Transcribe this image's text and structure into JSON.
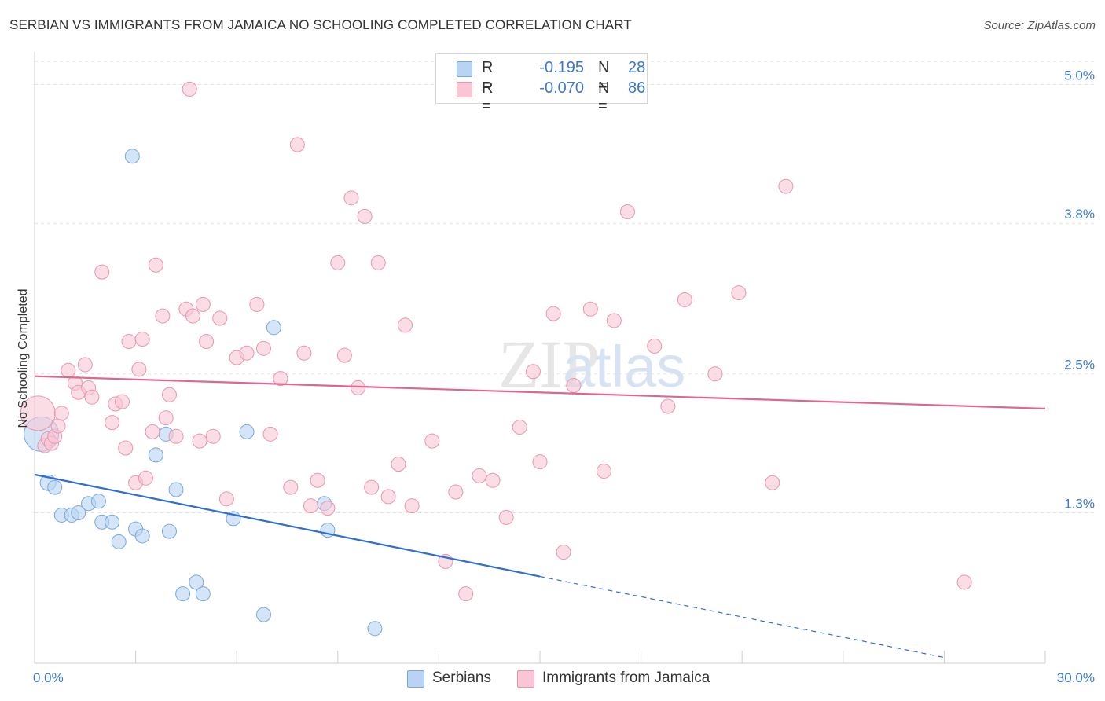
{
  "title": "SERBIAN VS IMMIGRANTS FROM JAMAICA NO SCHOOLING COMPLETED CORRELATION CHART",
  "source": "Source: ZipAtlas.com",
  "watermark": {
    "zip": "ZIP",
    "atlas": "atlas"
  },
  "legend": {
    "rows": [
      {
        "r_label": "R =",
        "r_value": "-0.195",
        "n_label": "N =",
        "n_value": "28"
      },
      {
        "r_label": "R =",
        "r_value": "-0.070",
        "n_label": "N =",
        "n_value": "86"
      }
    ]
  },
  "bottom_legend": {
    "series1": "Serbians",
    "series2": "Immigrants from Jamaica"
  },
  "chart_data": {
    "type": "scatter",
    "title": "SERBIAN VS IMMIGRANTS FROM JAMAICA NO SCHOOLING COMPLETED CORRELATION CHART",
    "xlabel": "",
    "ylabel": "No Schooling Completed",
    "xlim": [
      0,
      30
    ],
    "ylim": [
      0,
      5.2
    ],
    "x_tick_labels": [
      "0.0%",
      "30.0%"
    ],
    "y_ticks": [
      {
        "value": 1.3,
        "label": "1.3%"
      },
      {
        "value": 2.5,
        "label": "2.5%"
      },
      {
        "value": 3.8,
        "label": "3.8%"
      },
      {
        "value": 5.0,
        "label": "5.0%"
      }
    ],
    "grid": true,
    "legend_position": "top-center",
    "colors": {
      "serbians_fill": "#b8d3f4",
      "serbians_stroke": "#7aa7dd",
      "serbians_line": "#2e6fcf",
      "jamaica_fill": "#f8c6d5",
      "jamaica_stroke": "#e896b0",
      "jamaica_line": "#e0668c",
      "value_text": "#3b78c9"
    },
    "series": [
      {
        "name": "Serbians",
        "points": [
          [
            0.2,
            1.98,
            22
          ],
          [
            0.4,
            1.56,
            10
          ],
          [
            0.6,
            1.52,
            9
          ],
          [
            0.8,
            1.28,
            9
          ],
          [
            1.1,
            1.28,
            9
          ],
          [
            1.3,
            1.3,
            9
          ],
          [
            1.6,
            1.38,
            9
          ],
          [
            1.9,
            1.4,
            9
          ],
          [
            2.0,
            1.22,
            9
          ],
          [
            2.3,
            1.22,
            9
          ],
          [
            2.5,
            1.05,
            9
          ],
          [
            2.9,
            4.38,
            9
          ],
          [
            3.0,
            1.16,
            9
          ],
          [
            3.2,
            1.1,
            9
          ],
          [
            3.6,
            1.8,
            9
          ],
          [
            3.9,
            1.98,
            9
          ],
          [
            4.0,
            1.14,
            9
          ],
          [
            4.2,
            1.5,
            9
          ],
          [
            4.4,
            0.6,
            9
          ],
          [
            4.8,
            0.7,
            9
          ],
          [
            5.0,
            0.6,
            9
          ],
          [
            5.9,
            1.25,
            9
          ],
          [
            6.3,
            2.0,
            9
          ],
          [
            6.8,
            0.42,
            9
          ],
          [
            7.1,
            2.9,
            9
          ],
          [
            8.6,
            1.38,
            9
          ],
          [
            8.7,
            1.15,
            9
          ],
          [
            10.1,
            0.3,
            9
          ]
        ],
        "trend": {
          "x": [
            0,
            15
          ],
          "y": [
            1.63,
            0.75
          ]
        },
        "trend_extension": {
          "x": [
            15,
            27
          ],
          "y": [
            0.75,
            0.05
          ]
        }
      },
      {
        "name": "Immigrants from Jamaica",
        "points": [
          [
            0.1,
            2.16,
            22
          ],
          [
            0.3,
            1.88,
            9
          ],
          [
            0.4,
            1.94,
            9
          ],
          [
            0.5,
            1.9,
            9
          ],
          [
            0.6,
            1.96,
            9
          ],
          [
            0.7,
            2.05,
            9
          ],
          [
            0.8,
            2.16,
            9
          ],
          [
            1.0,
            2.53,
            9
          ],
          [
            1.2,
            2.42,
            9
          ],
          [
            1.3,
            2.34,
            9
          ],
          [
            1.5,
            2.58,
            9
          ],
          [
            1.6,
            2.38,
            9
          ],
          [
            1.7,
            2.3,
            9
          ],
          [
            2.0,
            3.38,
            9
          ],
          [
            2.3,
            2.08,
            9
          ],
          [
            2.4,
            2.24,
            9
          ],
          [
            2.6,
            2.26,
            9
          ],
          [
            2.7,
            1.86,
            9
          ],
          [
            2.8,
            2.78,
            9
          ],
          [
            3.0,
            1.56,
            9
          ],
          [
            3.1,
            2.54,
            9
          ],
          [
            3.2,
            2.8,
            9
          ],
          [
            3.3,
            1.6,
            9
          ],
          [
            3.5,
            2.0,
            9
          ],
          [
            3.6,
            3.44,
            9
          ],
          [
            3.8,
            3.0,
            9
          ],
          [
            3.9,
            2.12,
            9
          ],
          [
            4.0,
            2.32,
            9
          ],
          [
            4.2,
            1.96,
            9
          ],
          [
            4.5,
            3.06,
            9
          ],
          [
            4.6,
            4.96,
            9
          ],
          [
            4.7,
            3.0,
            9
          ],
          [
            4.9,
            1.92,
            9
          ],
          [
            5.0,
            3.1,
            9
          ],
          [
            5.1,
            2.78,
            9
          ],
          [
            5.3,
            1.96,
            9
          ],
          [
            5.5,
            2.98,
            9
          ],
          [
            5.7,
            1.42,
            9
          ],
          [
            6.0,
            2.64,
            9
          ],
          [
            6.3,
            2.68,
            9
          ],
          [
            6.6,
            3.1,
            9
          ],
          [
            6.8,
            2.72,
            9
          ],
          [
            7.0,
            1.98,
            9
          ],
          [
            7.3,
            2.46,
            9
          ],
          [
            7.6,
            1.52,
            9
          ],
          [
            7.8,
            4.48,
            9
          ],
          [
            8.0,
            2.68,
            9
          ],
          [
            8.2,
            1.36,
            9
          ],
          [
            8.4,
            1.58,
            9
          ],
          [
            8.7,
            1.34,
            9
          ],
          [
            9.0,
            3.46,
            9
          ],
          [
            9.2,
            2.66,
            9
          ],
          [
            9.4,
            4.02,
            9
          ],
          [
            9.6,
            2.38,
            9
          ],
          [
            9.8,
            3.86,
            9
          ],
          [
            10.0,
            1.52,
            9
          ],
          [
            10.2,
            3.46,
            9
          ],
          [
            10.5,
            1.44,
            9
          ],
          [
            10.8,
            1.72,
            9
          ],
          [
            11.0,
            2.92,
            9
          ],
          [
            11.2,
            1.36,
            9
          ],
          [
            11.8,
            1.92,
            9
          ],
          [
            12.2,
            0.88,
            9
          ],
          [
            12.5,
            1.48,
            9
          ],
          [
            12.8,
            0.6,
            9
          ],
          [
            13.2,
            1.62,
            9
          ],
          [
            13.6,
            1.58,
            9
          ],
          [
            14.0,
            1.26,
            9
          ],
          [
            14.4,
            2.04,
            9
          ],
          [
            14.8,
            2.52,
            9
          ],
          [
            15.0,
            1.74,
            9
          ],
          [
            15.4,
            3.02,
            9
          ],
          [
            15.7,
            0.96,
            9
          ],
          [
            16.0,
            2.4,
            9
          ],
          [
            16.5,
            3.06,
            9
          ],
          [
            16.9,
            1.66,
            9
          ],
          [
            17.2,
            2.96,
            9
          ],
          [
            17.6,
            3.9,
            9
          ],
          [
            18.4,
            2.74,
            9
          ],
          [
            18.8,
            2.22,
            9
          ],
          [
            19.3,
            3.14,
            9
          ],
          [
            20.2,
            2.5,
            9
          ],
          [
            20.9,
            3.2,
            9
          ],
          [
            21.9,
            1.56,
            9
          ],
          [
            22.3,
            4.12,
            9
          ],
          [
            27.6,
            0.7,
            9
          ]
        ],
        "trend": {
          "x": [
            0,
            30
          ],
          "y": [
            2.48,
            2.2
          ]
        }
      }
    ]
  }
}
